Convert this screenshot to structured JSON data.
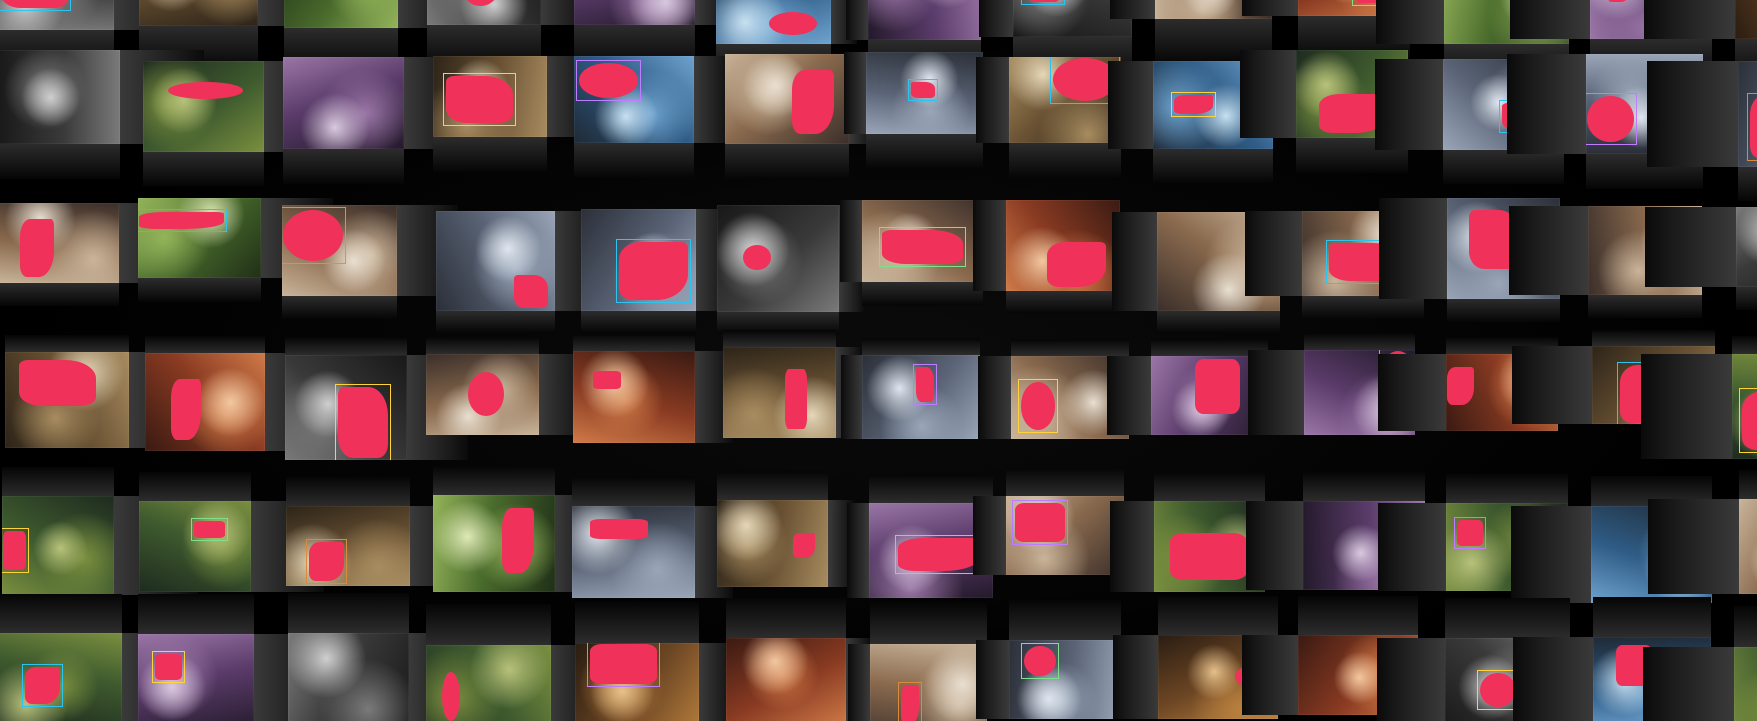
{
  "gallery": {
    "rows": 6,
    "columns": 13,
    "overlay_color": "#f0315a",
    "box_colors": [
      "#2ec4f1",
      "#d98a3a",
      "#7fe08a",
      "#c07cff",
      "#ffd23a"
    ],
    "palettes": [
      [
        "#3b2f2a",
        "#8a6a4e",
        "#c9b49a",
        "#e9dfd0"
      ],
      [
        "#1e2b1f",
        "#3e5a2e",
        "#7a8f3f",
        "#b7c27a"
      ],
      [
        "#2b2f38",
        "#5a6476",
        "#9aa6b8",
        "#dfe6ef"
      ],
      [
        "#2a1d12",
        "#6e4724",
        "#b9803e",
        "#e6c08a"
      ],
      [
        "#181818",
        "#3a3a3a",
        "#7a7a7a",
        "#cfcfcf"
      ],
      [
        "#1f2a36",
        "#2f5c86",
        "#6ea3cf",
        "#c7e0f1"
      ],
      [
        "#3a1a12",
        "#8a3b22",
        "#cf7a48",
        "#f2c7a0"
      ],
      [
        "#203018",
        "#496b2c",
        "#94b45a",
        "#dfe9b6"
      ],
      [
        "#241a2b",
        "#5b3c6b",
        "#9a76a6",
        "#d9c8df"
      ],
      [
        "#2d2418",
        "#6b5334",
        "#a88c60",
        "#e5d7b8"
      ]
    ]
  }
}
